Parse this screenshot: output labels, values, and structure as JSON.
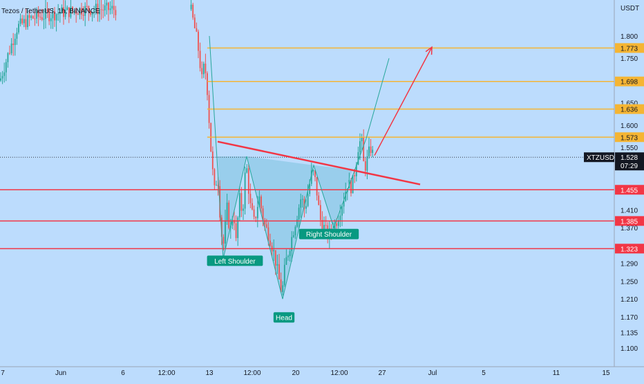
{
  "chart_data": {
    "type": "candlestick",
    "title": "Tezos / TetherUS, 1h, BINANCE",
    "y_unit": "USDT",
    "ylim": [
      1.07,
      1.86
    ],
    "x_ticks": [
      "7",
      "Jun",
      "6",
      "12:00",
      "13",
      "12:00",
      "20",
      "12:00",
      "27",
      "Jul",
      "5",
      "11",
      "15"
    ],
    "y_ticks": [
      1.8,
      1.75,
      1.65,
      1.6,
      1.55,
      1.41,
      1.37,
      1.29,
      1.25,
      1.21,
      1.17,
      1.135,
      1.1
    ],
    "current_price": {
      "symbol": "XTZUSDT",
      "value": "1.528",
      "countdown": "07:29",
      "price": 1.528
    },
    "target_levels": [
      {
        "label": "1.773",
        "price": 1.773
      },
      {
        "label": "1.698",
        "price": 1.698
      },
      {
        "label": "1.636",
        "price": 1.636
      },
      {
        "label": "1.573",
        "price": 1.573
      }
    ],
    "support_levels": [
      {
        "label": "1.455",
        "price": 1.455
      },
      {
        "label": "1.385",
        "price": 1.385
      },
      {
        "label": "1.323",
        "price": 1.323
      }
    ],
    "pattern_labels": [
      "Left Shoulder",
      "Head",
      "Right Shoulder"
    ],
    "colors": {
      "background": "#bcdcfd",
      "up": "#26a69a",
      "down": "#ef5350",
      "target": "#f5b533",
      "support": "#f23645",
      "neckline": "#f23645",
      "pattern_fill": "#8ecae6",
      "pattern_line": "#26a69a",
      "label_bg": "#089981",
      "price_tag": "#131722"
    }
  }
}
